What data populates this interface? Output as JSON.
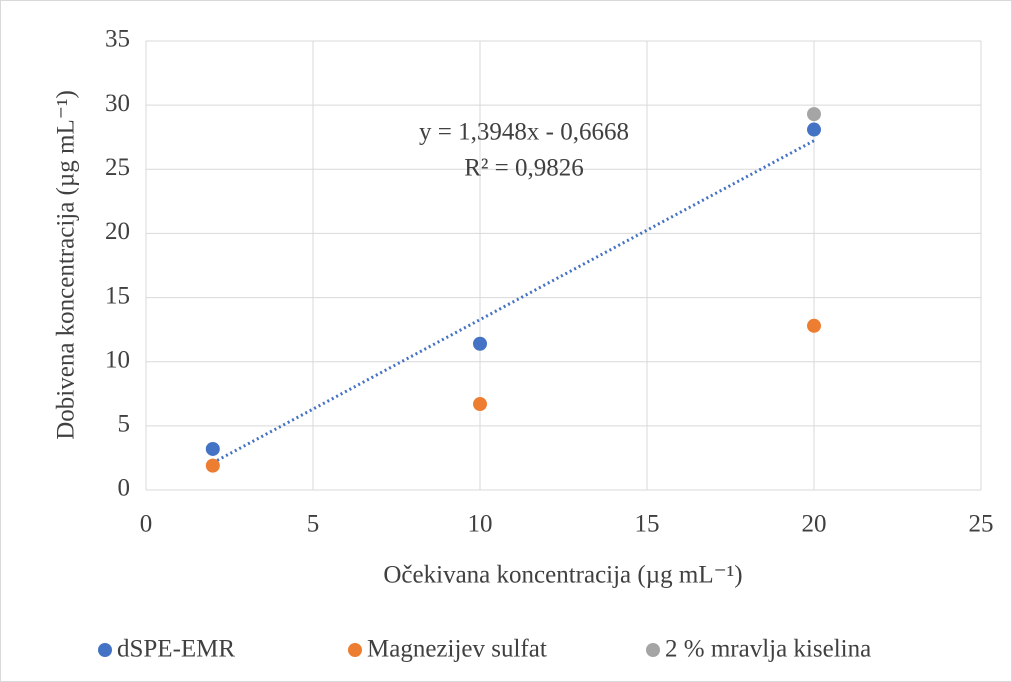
{
  "chart_data": {
    "type": "scatter",
    "xlabel": "Očekivana koncentracija (µg mL⁻¹)",
    "ylabel": "Dobivena koncentracija (µg mL⁻¹)",
    "xlim": [
      0,
      25
    ],
    "xticks": [
      0,
      5,
      10,
      15,
      20,
      25
    ],
    "ylim": [
      0,
      35
    ],
    "yticks": [
      0,
      5,
      10,
      15,
      20,
      25,
      30,
      35
    ],
    "grid": true,
    "legend": "bottom",
    "series": [
      {
        "name": "dSPE-EMR",
        "color": "#4472c4",
        "x": [
          2,
          10,
          20
        ],
        "values": [
          3.2,
          11.4,
          28.1
        ],
        "trendline": {
          "slope": 1.3948,
          "intercept": -0.6668,
          "equation": "y = 1,3948x - 0,6668",
          "r2": "R² = 0,9826"
        }
      },
      {
        "name": "Magnezijev sulfat",
        "color": "#ed7d31",
        "x": [
          2,
          10,
          20
        ],
        "values": [
          1.9,
          6.7,
          12.8
        ]
      },
      {
        "name": "2 % mravlja kiselina",
        "color": "#a5a5a5",
        "x": [
          20
        ],
        "values": [
          29.3
        ]
      }
    ]
  }
}
